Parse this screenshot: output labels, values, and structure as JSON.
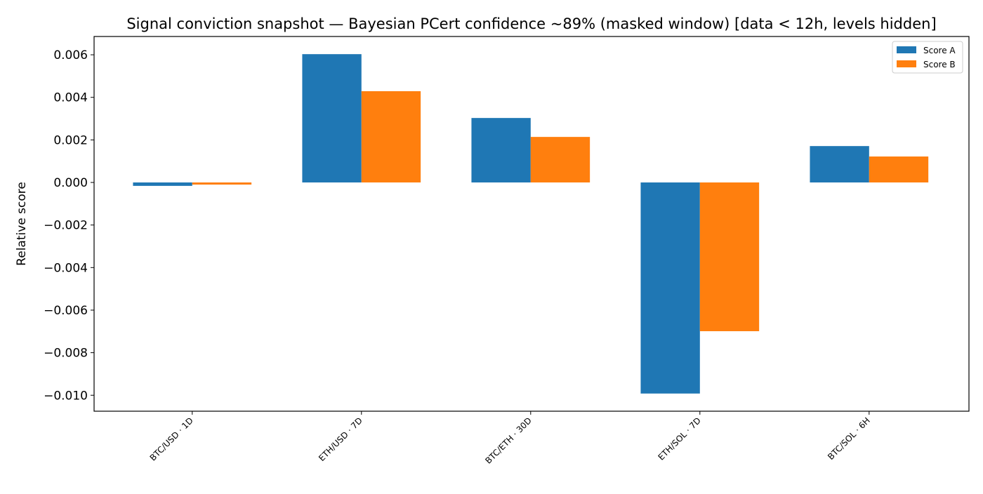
{
  "chart_data": {
    "type": "bar",
    "title": "Signal conviction snapshot — Bayesian PCert confidence ~89% (masked window) [data < 12h, levels hidden]",
    "xlabel": "",
    "ylabel": "Relative score",
    "categories": [
      "BTC/USD · 1D",
      "ETH/USD · 7D",
      "BTC/ETH · 30D",
      "ETH/SOL · 7D",
      "BTC/SOL · 6H"
    ],
    "series": [
      {
        "name": "Score A",
        "color": "#1f77b4",
        "values": [
          -0.00016,
          0.00603,
          0.00303,
          -0.00992,
          0.00171
        ]
      },
      {
        "name": "Score B",
        "color": "#ff7f0e",
        "values": [
          -0.0001,
          0.00429,
          0.00214,
          -0.00699,
          0.00122
        ]
      }
    ],
    "ylim": [
      -0.01075,
      0.00686
    ],
    "yticks": [
      0.006,
      0.004,
      0.002,
      0.0,
      -0.002,
      -0.004,
      -0.006,
      -0.008,
      -0.01
    ],
    "ytick_labels": [
      "0.006",
      "0.004",
      "0.002",
      "0.000",
      "−0.002",
      "−0.004",
      "−0.006",
      "−0.008",
      "−0.010"
    ],
    "grid": false,
    "legend": "top-right"
  }
}
